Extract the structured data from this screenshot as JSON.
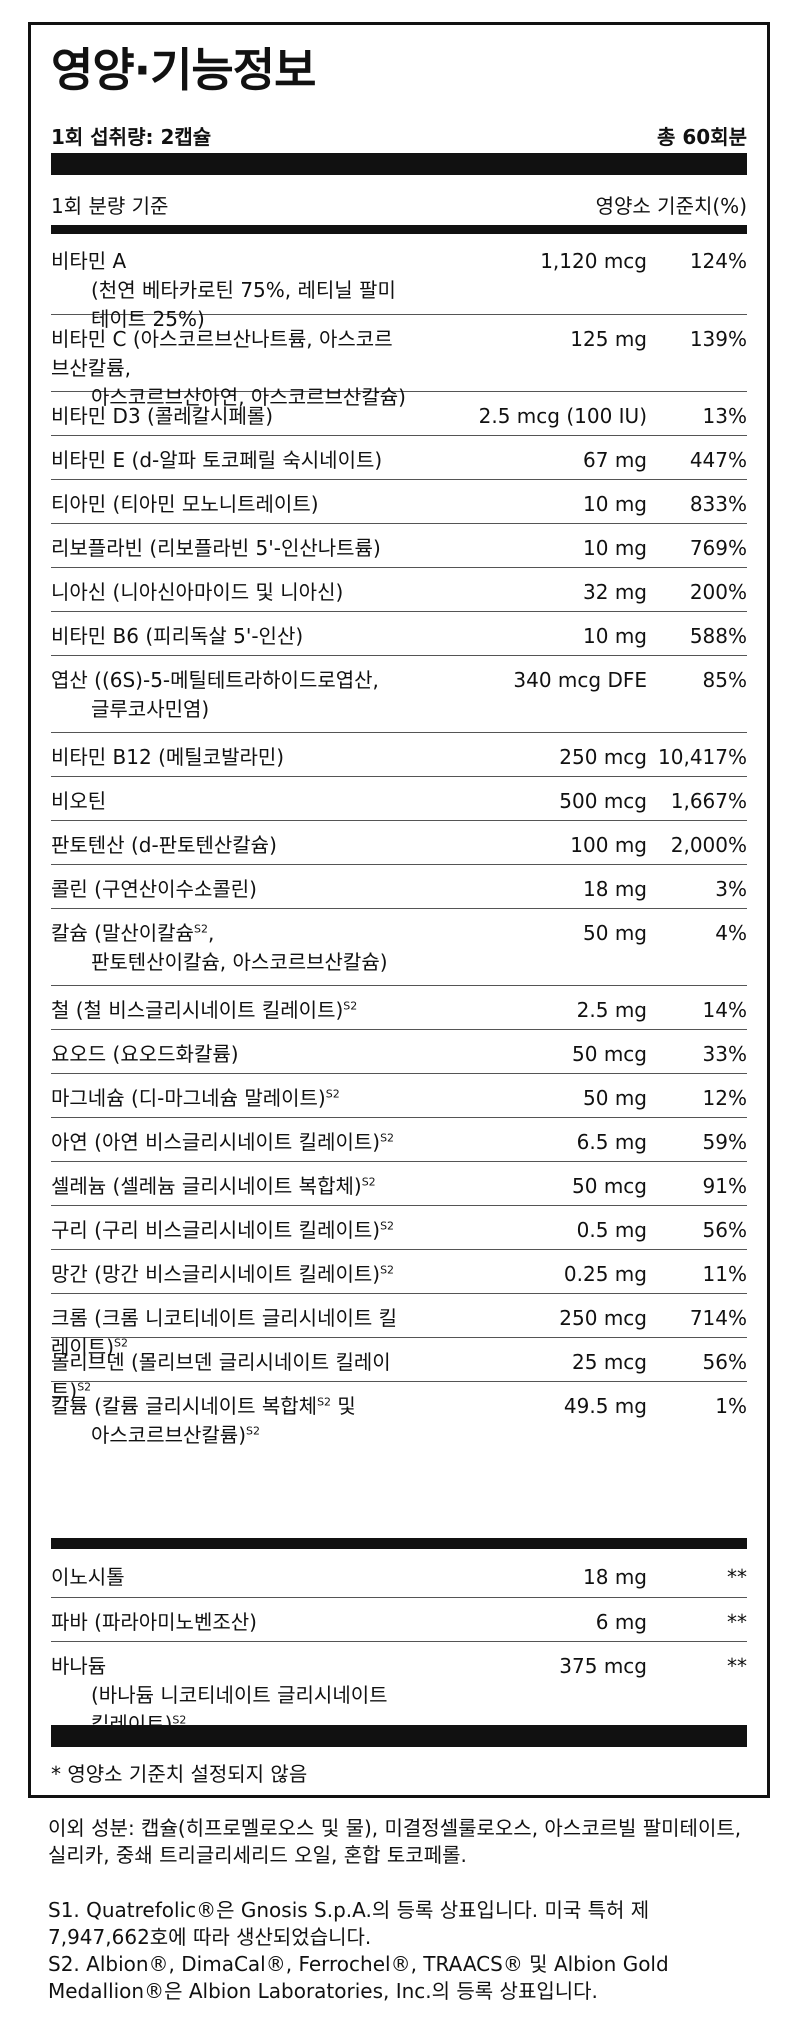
{
  "title": "영양·기능정보",
  "serving_size": "1회 섭취량: 2캡슐",
  "servings_per_container": "총 60회분",
  "column_header": {
    "basis": "1회 분량 기준",
    "daily_value": "영양소 기준치(%)"
  },
  "nutrients": [
    {
      "name": "비타민 A",
      "sub": "(천연 베타카로틴 75%, 레티닐 팔미테이트 25%)",
      "amount": "1,120 mcg",
      "dv": "124%"
    },
    {
      "name": "비타민 C (아스코르브산나트륨, 아스코르브산칼륨,",
      "sub": "아스코르브산아연, 아스코르브산칼슘)",
      "amount": "125 mg",
      "dv": "139%"
    },
    {
      "name": "비타민 D3 (콜레칼시페롤)",
      "amount": "2.5 mcg (100 IU)",
      "dv": "13%"
    },
    {
      "name": "비타민 E (d-알파 토코페릴 숙시네이트)",
      "amount": "67 mg",
      "dv": "447%"
    },
    {
      "name": "티아민 (티아민 모노니트레이트)",
      "amount": "10 mg",
      "dv": "833%"
    },
    {
      "name": "리보플라빈 (리보플라빈 5'-인산나트륨)",
      "amount": "10 mg",
      "dv": "769%"
    },
    {
      "name": "니아신 (니아신아마이드 및 니아신)",
      "amount": "32 mg",
      "dv": "200%"
    },
    {
      "name": "비타민 B6 (피리독살 5'-인산)",
      "amount": "10 mg",
      "dv": "588%"
    },
    {
      "name": "엽산 ((6S)-5-메틸테트라하이드로엽산,",
      "sub": "글루코사민염)",
      "amount": "340 mcg DFE",
      "dv": "85%"
    },
    {
      "name": "비타민 B12 (메틸코발라민)",
      "amount": "250 mcg",
      "dv": "10,417%"
    },
    {
      "name": "비오틴",
      "amount": "500 mcg",
      "dv": "1,667%"
    },
    {
      "name": "판토텐산 (d-판토텐산칼슘)",
      "amount": "100 mg",
      "dv": "2,000%"
    },
    {
      "name": "콜린 (구연산이수소콜린)",
      "amount": "18 mg",
      "dv": "3%"
    },
    {
      "name": "칼슘 (말산이칼슘",
      "sup": "S2",
      "name_tail": ",",
      "sub": "판토텐산이칼슘, 아스코르브산칼슘)",
      "amount": "50 mg",
      "dv": "4%"
    },
    {
      "name": "철 (철 비스글리시네이트 킬레이트)",
      "sup": "S2",
      "amount": "2.5 mg",
      "dv": "14%"
    },
    {
      "name": "요오드 (요오드화칼륨)",
      "amount": "50 mcg",
      "dv": "33%"
    },
    {
      "name": "마그네슘 (디-마그네슘 말레이트)",
      "sup": "S2",
      "amount": "50 mg",
      "dv": "12%"
    },
    {
      "name": "아연 (아연 비스글리시네이트 킬레이트)",
      "sup": "S2",
      "amount": "6.5 mg",
      "dv": "59%"
    },
    {
      "name": "셀레늄 (셀레늄 글리시네이트 복합체)",
      "sup": "S2",
      "amount": "50 mcg",
      "dv": "91%"
    },
    {
      "name": "구리 (구리 비스글리시네이트 킬레이트)",
      "sup": "S2",
      "amount": "0.5 mg",
      "dv": "56%"
    },
    {
      "name": "망간 (망간 비스글리시네이트 킬레이트)",
      "sup": "S2",
      "amount": "0.25 mg",
      "dv": "11%"
    },
    {
      "name": "크롬 (크롬 니코티네이트 글리시네이트 킬레이트)",
      "sup": "S2",
      "amount": "250 mcg",
      "dv": "714%"
    },
    {
      "name": "몰리브덴 (몰리브덴 글리시네이트 킬레이트)",
      "sup": "S2",
      "amount": "25 mcg",
      "dv": "56%"
    },
    {
      "name": "칼륨 (칼륨 글리시네이트 복합체",
      "sup": "S2",
      "name_tail": " 및",
      "sub": "아스코르브산칼륨)",
      "sub_sup": "S2",
      "amount": "49.5 mg",
      "dv": "1%"
    }
  ],
  "other_nutrients": [
    {
      "name": "이노시톨",
      "amount": "18 mg",
      "dv": "**"
    },
    {
      "name": "파바 (파라아미노벤조산)",
      "amount": "6 mg",
      "dv": "**"
    },
    {
      "name": "바나듐",
      "sub": "(바나듐 니코티네이트 글리시네이트 킬레이트)",
      "sub_sup": "S2",
      "amount": "375 mcg",
      "dv": "**"
    }
  ],
  "footnote_star": "* 영양소 기준치 설정되지 않음",
  "other_ingredients": "이외 성분: 캡슐(히프로멜로오스 및 물), 미결정셀룰로오스, 아스코르빌 팔미테이트, 실리카, 중쇄 트리글리세리드 오일, 혼합 토코페롤.",
  "trademark_s1": "S1. Quatrefolic®은 Gnosis S.p.A.의 등록 상표입니다. 미국 특허 제 7,947,662호에 따라 생산되었습니다.",
  "trademark_s2": "S2. Albion®, DimaCal®, Ferrochel®, TRAACS® 및 Albion Gold Medallion®은 Albion Laboratories, Inc.의 등록 상표입니다."
}
